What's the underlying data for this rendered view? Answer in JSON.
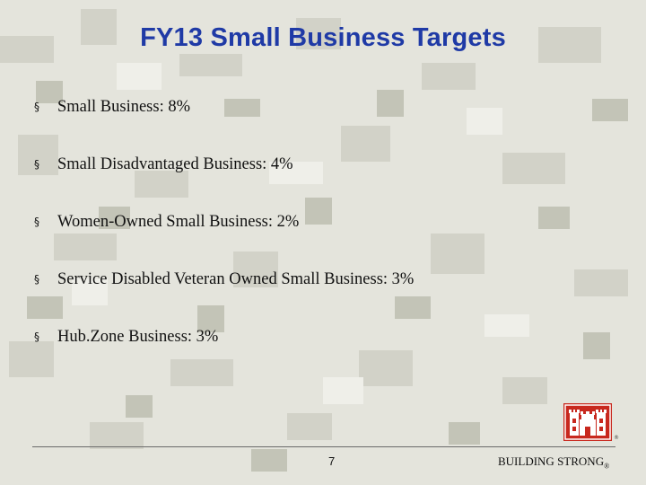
{
  "slide": {
    "title": "FY13 Small Business Targets",
    "bullets": [
      {
        "marker": "§",
        "text": "Small Business:  8%"
      },
      {
        "marker": "§",
        "text": "Small Disadvantaged Business: 4%"
      },
      {
        "marker": "§",
        "text": "Women-Owned Small Business: 2%"
      },
      {
        "marker": "§",
        "text": "Service Disabled Veteran Owned Small Business: 3%"
      },
      {
        "marker": "§",
        "text": "Hub.Zone Business: 3%"
      }
    ],
    "footer": {
      "page_number": "7",
      "brand": "BUILDING STRONG",
      "registered_mark": "®"
    },
    "logo": {
      "icon": "castle-icon",
      "registered_mark": "®"
    },
    "colors": {
      "title": "#1f3aa6",
      "logo_red": "#c8281e",
      "background": "#e4e4dc"
    }
  }
}
